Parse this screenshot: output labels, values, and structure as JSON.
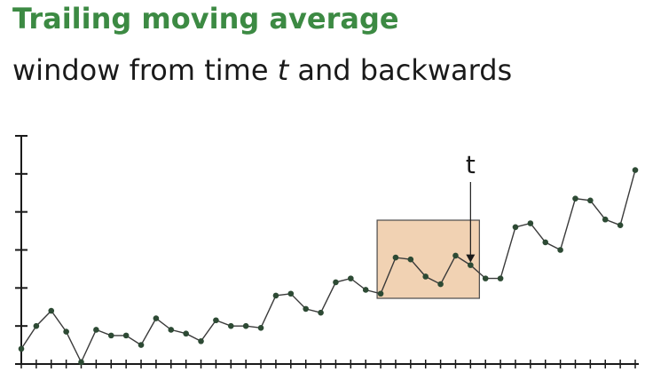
{
  "title": "Trailing moving average",
  "subtitle": {
    "before": "window from time ",
    "t": "t",
    "after": " and backwards"
  },
  "marker_label": "t",
  "colors": {
    "title": "#3c8a43",
    "window_fill": "#f1d2b3",
    "window_stroke": "#4a4a4a",
    "line": "#3a3a3a",
    "point": "#2d4a34",
    "axis": "#1a1a1a"
  },
  "chart_data": {
    "type": "line",
    "title": "",
    "xlabel": "",
    "ylabel": "",
    "x": [
      0,
      1,
      2,
      3,
      4,
      5,
      6,
      7,
      8,
      9,
      10,
      11,
      12,
      13,
      14,
      15,
      16,
      17,
      18,
      19,
      20,
      21,
      22,
      23,
      24,
      25,
      26,
      27,
      28,
      29,
      30,
      31,
      32,
      33,
      34,
      35,
      36,
      37,
      38,
      39,
      40,
      41
    ],
    "values": [
      0.4,
      1.0,
      1.4,
      0.85,
      0.05,
      0.9,
      0.75,
      0.75,
      0.5,
      1.2,
      0.9,
      0.8,
      0.6,
      1.15,
      1.0,
      1.0,
      0.95,
      1.8,
      1.85,
      1.45,
      1.35,
      2.15,
      2.25,
      1.95,
      1.85,
      2.8,
      2.75,
      2.3,
      2.1,
      2.85,
      2.6,
      2.25,
      2.25,
      3.6,
      3.7,
      3.2,
      3.0,
      4.35,
      4.3,
      3.8,
      3.65,
      5.1
    ],
    "ylim": [
      0,
      6
    ],
    "y_ticks": 6,
    "x_ticks": 42,
    "window": {
      "start": 24,
      "end": 30,
      "current": 30
    }
  }
}
